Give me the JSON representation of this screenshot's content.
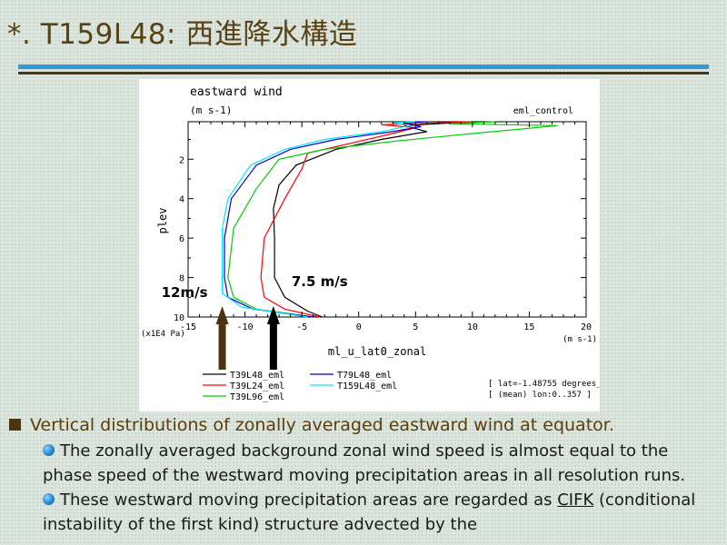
{
  "slide": {
    "title": "*. T159L48: 西進降水構造",
    "bullet": "Vertical distributions of zonally averaged eastward wind at equator.",
    "subbullets": [
      {
        "text": "The zonally averaged background zonal wind speed is almost equal to the phase speed of the westward moving precipitation areas in all resolution runs."
      },
      {
        "text_before": "These westward moving precipitation areas are regarded as ",
        "link_text": "CIFK",
        "text_after": " (conditional instability of the first kind) structure advected by the"
      }
    ]
  },
  "chart_data": {
    "type": "line",
    "title": "eastward wind",
    "subtitle": "(m s-1)",
    "run_label": "eml_control",
    "xlabel": "ml_u_lat0_zonal",
    "xunit": "(m s-1)",
    "ylabel": "plev",
    "yunit": "(x1E4 Pa)",
    "xlim": [
      -15,
      20
    ],
    "ylim": [
      0.1,
      10
    ],
    "y_inverted": true,
    "xticks": [
      "-15",
      "-10",
      "-5",
      "0",
      "5",
      "10",
      "15",
      "20"
    ],
    "yticks": [
      "2",
      "4",
      "6",
      "8",
      "10"
    ],
    "info_lines": [
      "[ lat=-1.48755 degrees_",
      "[ (mean) lon:0..357 ]"
    ],
    "series": [
      {
        "name": "T39L48_eml",
        "color": "#000000",
        "points": [
          [
            -3.2,
            10
          ],
          [
            -4.5,
            9.7
          ],
          [
            -6.5,
            9.0
          ],
          [
            -7.4,
            8.0
          ],
          [
            -7.4,
            6.0
          ],
          [
            -7.5,
            4.5
          ],
          [
            -7,
            3.3
          ],
          [
            -5.5,
            2.3
          ],
          [
            -2,
            1.5
          ],
          [
            2,
            1.0
          ],
          [
            6,
            0.6
          ],
          [
            4,
            0.3
          ],
          [
            7,
            0.2
          ],
          [
            10,
            0.1
          ]
        ]
      },
      {
        "name": "T39L24_eml",
        "color": "#ff0000",
        "points": [
          [
            -3.4,
            10
          ],
          [
            -6.5,
            9.6
          ],
          [
            -8.3,
            9.0
          ],
          [
            -8.6,
            8.0
          ],
          [
            -8.3,
            6.0
          ],
          [
            -6.5,
            4.0
          ],
          [
            -5,
            2.5
          ],
          [
            -4.5,
            1.7
          ],
          [
            0,
            1.1
          ],
          [
            3,
            0.7
          ],
          [
            5,
            0.4
          ],
          [
            2,
            0.25
          ],
          [
            10,
            0.1
          ]
        ]
      },
      {
        "name": "T39L96_eml",
        "color": "#00cc00",
        "points": [
          [
            -4,
            10
          ],
          [
            -9,
            9.6
          ],
          [
            -11,
            9.0
          ],
          [
            -11.5,
            8.0
          ],
          [
            -11,
            5.5
          ],
          [
            -9,
            3.5
          ],
          [
            -7,
            2.0
          ],
          [
            -3,
            1.5
          ],
          [
            3,
            1.1
          ],
          [
            10,
            0.7
          ],
          [
            17.5,
            0.3
          ],
          [
            8,
            0.2
          ],
          [
            12,
            0.1
          ]
        ]
      },
      {
        "name": "T79L48_eml",
        "color": "#0000cc",
        "points": [
          [
            -4,
            10
          ],
          [
            -9.3,
            9.6
          ],
          [
            -11.5,
            9.0
          ],
          [
            -11.8,
            8.0
          ],
          [
            -11.8,
            6.0
          ],
          [
            -11.2,
            4.0
          ],
          [
            -9,
            2.3
          ],
          [
            -6,
            1.5
          ],
          [
            -2,
            1.0
          ],
          [
            3,
            0.6
          ],
          [
            5.5,
            0.35
          ],
          [
            4,
            0.15
          ],
          [
            6,
            0.1
          ]
        ]
      },
      {
        "name": "T159L48_eml",
        "color": "#00e5ff",
        "points": [
          [
            -4.5,
            10
          ],
          [
            -10.3,
            9.5
          ],
          [
            -12,
            8.8
          ],
          [
            -12,
            8.0
          ],
          [
            -12,
            5.5
          ],
          [
            -11.5,
            4.0
          ],
          [
            -9.5,
            2.3
          ],
          [
            -6.5,
            1.5
          ],
          [
            -3,
            1.0
          ],
          [
            2,
            0.6
          ],
          [
            4.5,
            0.3
          ],
          [
            3,
            0.15
          ],
          [
            5,
            0.1
          ]
        ]
      }
    ],
    "annotations": [
      {
        "text": "12m/s",
        "x": -12,
        "y": 10
      },
      {
        "text": "7.5 m/s",
        "x": -7.5,
        "y": 10
      }
    ]
  }
}
